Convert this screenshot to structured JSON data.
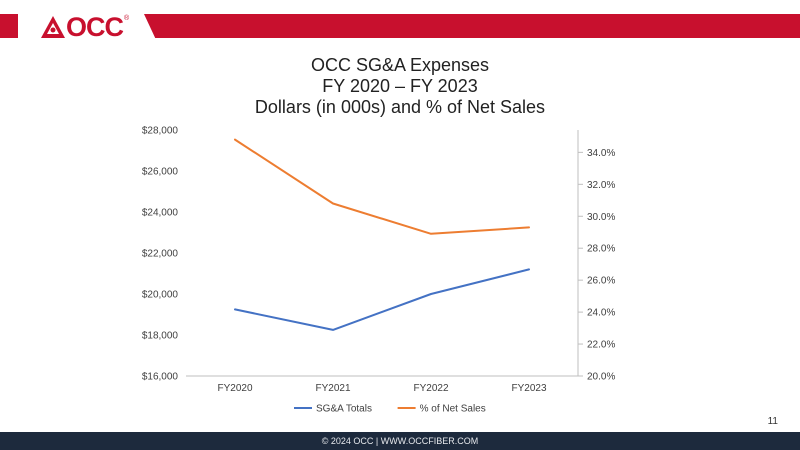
{
  "brand": {
    "logo_text": "OCC",
    "registered": "®",
    "accent_color": "#c8102e"
  },
  "slide": {
    "page_number": "11",
    "footer_text": "© 2024 OCC | WWW.OCCFIBER.COM"
  },
  "chart_data": {
    "type": "line",
    "title": [
      "OCC SG&A Expenses",
      "FY 2020 – FY 2023",
      "Dollars (in 000s) and % of Net Sales"
    ],
    "categories": [
      "FY2020",
      "FY2021",
      "FY2022",
      "FY2023"
    ],
    "series": [
      {
        "name": "SG&A Totals",
        "axis": "left",
        "color": "#4472c4",
        "values": [
          19250,
          18250,
          20000,
          21200
        ]
      },
      {
        "name": "% of Net Sales",
        "axis": "right",
        "color": "#ed7d31",
        "values": [
          34.8,
          30.8,
          28.9,
          29.3
        ]
      }
    ],
    "y_left": {
      "min": 16000,
      "max": 28000,
      "step": 2000,
      "ticks": [
        "$16,000",
        "$18,000",
        "$20,000",
        "$22,000",
        "$24,000",
        "$26,000",
        "$28,000"
      ]
    },
    "y_right": {
      "min": 20,
      "max": 35.4,
      "step": 2,
      "ticks": [
        "20.0%",
        "22.0%",
        "24.0%",
        "26.0%",
        "28.0%",
        "30.0%",
        "32.0%",
        "34.0%"
      ]
    },
    "legend_position": "bottom",
    "grid": false
  }
}
